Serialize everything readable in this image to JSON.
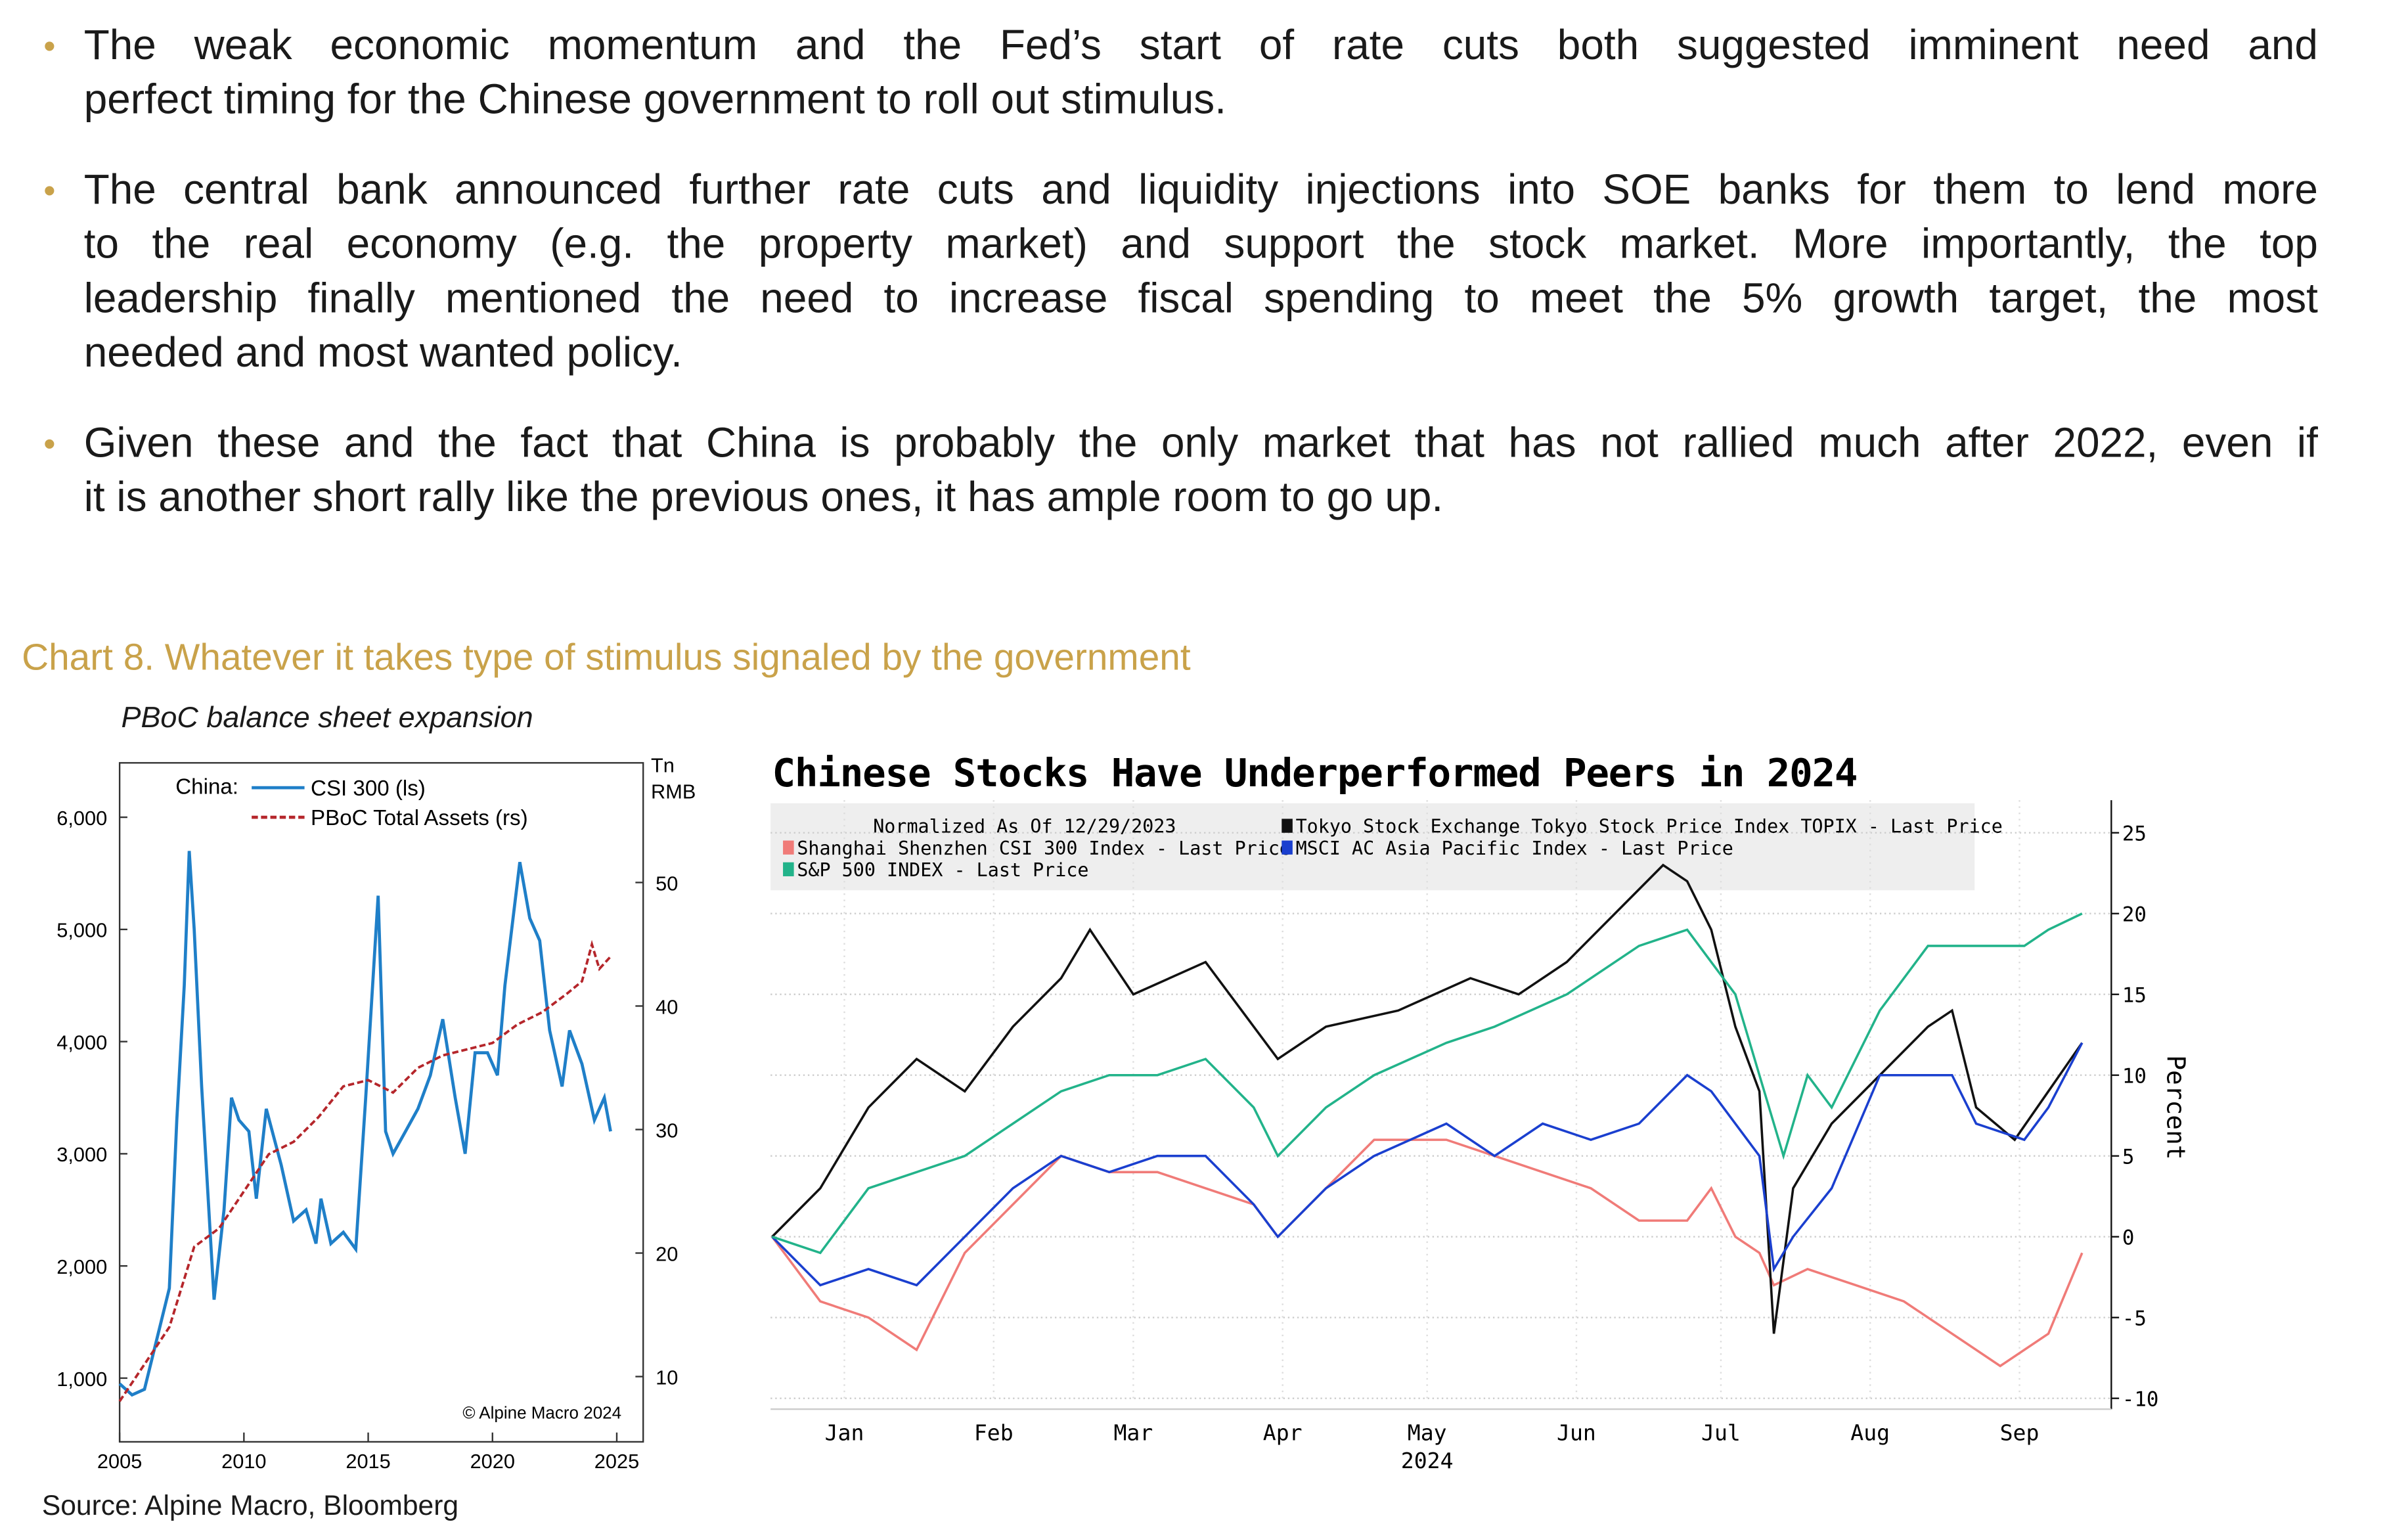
{
  "bullets": [
    {
      "lines": [
        "The weak economic momentum and the Fed’s start of rate cuts both suggested imminent need and",
        "perfect timing for the Chinese government to roll out stimulus."
      ]
    },
    {
      "lines": [
        "The central bank announced further rate cuts and liquidity injections into SOE banks for them to lend more",
        "to the real economy (e.g. the property market) and support the stock market. More importantly, the top",
        "leadership finally mentioned the need to increase fiscal spending to meet the 5% growth target, the most",
        "needed and most wanted policy."
      ]
    },
    {
      "lines": [
        "Given these and the fact that China is probably the only market that has not rallied much after 2022, even if",
        "it is another short rally like the previous ones, it has ample room to go up."
      ]
    }
  ],
  "chart_title": "Chart 8. Whatever it takes type of stimulus signaled by the government",
  "source": "Source: Alpine Macro, Bloomberg",
  "colors": {
    "gold": "#c9a24a",
    "csi_blue": "#1f7fc8",
    "pboc_red": "#b5262b",
    "cn_red": "#f07b78",
    "topix_black": "#111111",
    "msci_blue": "#1a3fcf",
    "spx_green": "#22b38a"
  },
  "chart_data": [
    {
      "type": "line",
      "title": "PBoC balance sheet expansion",
      "legend_prefix": "China:",
      "right_axis_unit": [
        "Tn",
        "RMB"
      ],
      "copyright": "© Alpine Macro 2024",
      "xlim": [
        2005,
        2025.5
      ],
      "xticks": [
        2005,
        2010,
        2015,
        2020,
        2025
      ],
      "xtick_labels": [
        "2005",
        "2010",
        "2015",
        "2020",
        "2025"
      ],
      "ylim_left": [
        500,
        6500
      ],
      "yticks_left": [
        1000,
        2000,
        3000,
        4000,
        5000,
        6000
      ],
      "ytick_labels_left": [
        "1,000",
        "2,000",
        "3,000",
        "4,000",
        "5,000",
        "6,000"
      ],
      "ylim_right": [
        5,
        56
      ],
      "yticks_right": [
        10,
        20,
        30,
        40,
        50
      ],
      "ytick_labels_right": [
        "10",
        "20",
        "30",
        "40",
        "50"
      ],
      "series": [
        {
          "name": "CSI 300 (ls)",
          "axis": "left",
          "style": "solid",
          "points": [
            [
              2005,
              950
            ],
            [
              2005.5,
              850
            ],
            [
              2006,
              900
            ],
            [
              2006.5,
              1350
            ],
            [
              2007,
              1800
            ],
            [
              2007.3,
              3300
            ],
            [
              2007.6,
              4500
            ],
            [
              2007.8,
              5700
            ],
            [
              2008,
              5000
            ],
            [
              2008.3,
              3600
            ],
            [
              2008.8,
              1700
            ],
            [
              2009.2,
              2500
            ],
            [
              2009.5,
              3500
            ],
            [
              2009.8,
              3300
            ],
            [
              2010.2,
              3200
            ],
            [
              2010.5,
              2600
            ],
            [
              2010.9,
              3400
            ],
            [
              2011.5,
              2900
            ],
            [
              2012,
              2400
            ],
            [
              2012.5,
              2500
            ],
            [
              2012.9,
              2200
            ],
            [
              2013.1,
              2600
            ],
            [
              2013.5,
              2200
            ],
            [
              2014,
              2300
            ],
            [
              2014.5,
              2150
            ],
            [
              2014.9,
              3500
            ],
            [
              2015.4,
              5300
            ],
            [
              2015.7,
              3200
            ],
            [
              2016,
              3000
            ],
            [
              2016.5,
              3200
            ],
            [
              2017,
              3400
            ],
            [
              2017.5,
              3700
            ],
            [
              2018,
              4200
            ],
            [
              2018.5,
              3500
            ],
            [
              2018.9,
              3000
            ],
            [
              2019.3,
              3900
            ],
            [
              2019.8,
              3900
            ],
            [
              2020.2,
              3700
            ],
            [
              2020.5,
              4500
            ],
            [
              2021.1,
              5600
            ],
            [
              2021.5,
              5100
            ],
            [
              2021.9,
              4900
            ],
            [
              2022.3,
              4100
            ],
            [
              2022.8,
              3600
            ],
            [
              2023.1,
              4100
            ],
            [
              2023.6,
              3800
            ],
            [
              2024.1,
              3300
            ],
            [
              2024.5,
              3500
            ],
            [
              2024.75,
              3200
            ]
          ]
        },
        {
          "name": "PBoC Total Assets (rs)",
          "axis": "right",
          "style": "dashed",
          "points": [
            [
              2005,
              8
            ],
            [
              2006,
              11
            ],
            [
              2007,
              14
            ],
            [
              2008,
              20.5
            ],
            [
              2009,
              22
            ],
            [
              2010,
              25
            ],
            [
              2011,
              28
            ],
            [
              2012,
              29
            ],
            [
              2013,
              31
            ],
            [
              2014,
              33.5
            ],
            [
              2015,
              34
            ],
            [
              2016,
              33
            ],
            [
              2017,
              35
            ],
            [
              2018,
              36
            ],
            [
              2019,
              36.5
            ],
            [
              2020,
              37
            ],
            [
              2021,
              38.5
            ],
            [
              2022,
              39.5
            ],
            [
              2023,
              41
            ],
            [
              2023.6,
              42
            ],
            [
              2024,
              45
            ],
            [
              2024.3,
              43
            ],
            [
              2024.75,
              44
            ]
          ]
        }
      ]
    },
    {
      "type": "line",
      "title": "Chinese Stocks Have Underperformed Peers in 2024",
      "legend_note": "Normalized As Of 12/29/2023",
      "ylabel": "Percent",
      "xlabel_year": "2024",
      "x_unit": "day of 2024",
      "xlim": [
        -2,
        290
      ],
      "xticks": [
        15,
        46,
        75,
        106,
        136,
        167,
        197,
        228,
        259
      ],
      "xtick_labels": [
        "Jan",
        "Feb",
        "Mar",
        "Apr",
        "May",
        "Jun",
        "Jul",
        "Aug",
        "Sep"
      ],
      "ylim": [
        -10,
        27
      ],
      "yticks": [
        -10,
        -5,
        0,
        5,
        10,
        15,
        20,
        25
      ],
      "ytick_labels": [
        "-10",
        "-5",
        "0",
        "5",
        "10",
        "15",
        "20",
        "25"
      ],
      "series": [
        {
          "name": "Shanghai Shenzhen CSI 300 Index - Last Price",
          "color_key": "cn_red",
          "points": [
            [
              0,
              0
            ],
            [
              10,
              -4
            ],
            [
              20,
              -5
            ],
            [
              30,
              -7
            ],
            [
              35,
              -4
            ],
            [
              40,
              -1
            ],
            [
              50,
              2
            ],
            [
              60,
              5
            ],
            [
              70,
              4
            ],
            [
              80,
              4
            ],
            [
              90,
              3
            ],
            [
              100,
              2
            ],
            [
              105,
              0
            ],
            [
              115,
              3
            ],
            [
              125,
              6
            ],
            [
              140,
              6
            ],
            [
              150,
              5
            ],
            [
              160,
              4
            ],
            [
              170,
              3
            ],
            [
              180,
              1
            ],
            [
              190,
              1
            ],
            [
              195,
              3
            ],
            [
              200,
              0
            ],
            [
              205,
              -1
            ],
            [
              208,
              -3
            ],
            [
              215,
              -2
            ],
            [
              225,
              -3
            ],
            [
              235,
              -4
            ],
            [
              245,
              -6
            ],
            [
              255,
              -8
            ],
            [
              265,
              -6
            ],
            [
              272,
              -1
            ]
          ]
        },
        {
          "name": "Tokyo Stock Exchange Tokyo Stock Price Index TOPIX - Last Price",
          "color_key": "topix_black",
          "points": [
            [
              0,
              0
            ],
            [
              10,
              3
            ],
            [
              20,
              8
            ],
            [
              30,
              11
            ],
            [
              40,
              9
            ],
            [
              50,
              13
            ],
            [
              60,
              16
            ],
            [
              66,
              19
            ],
            [
              75,
              15
            ],
            [
              90,
              17
            ],
            [
              100,
              13
            ],
            [
              105,
              11
            ],
            [
              115,
              13
            ],
            [
              130,
              14
            ],
            [
              145,
              16
            ],
            [
              155,
              15
            ],
            [
              165,
              17
            ],
            [
              175,
              20
            ],
            [
              185,
              23
            ],
            [
              190,
              22
            ],
            [
              195,
              19
            ],
            [
              200,
              13
            ],
            [
              205,
              9
            ],
            [
              208,
              -6
            ],
            [
              212,
              3
            ],
            [
              220,
              7
            ],
            [
              230,
              10
            ],
            [
              240,
              13
            ],
            [
              245,
              14
            ],
            [
              250,
              8
            ],
            [
              258,
              6
            ],
            [
              265,
              9
            ],
            [
              272,
              12
            ]
          ]
        },
        {
          "name": "MSCI AC Asia Pacific Index - Last Price",
          "color_key": "msci_blue",
          "points": [
            [
              0,
              0
            ],
            [
              10,
              -3
            ],
            [
              20,
              -2
            ],
            [
              30,
              -3
            ],
            [
              40,
              0
            ],
            [
              50,
              3
            ],
            [
              60,
              5
            ],
            [
              70,
              4
            ],
            [
              80,
              5
            ],
            [
              90,
              5
            ],
            [
              100,
              2
            ],
            [
              105,
              0
            ],
            [
              115,
              3
            ],
            [
              125,
              5
            ],
            [
              140,
              7
            ],
            [
              150,
              5
            ],
            [
              160,
              7
            ],
            [
              170,
              6
            ],
            [
              180,
              7
            ],
            [
              190,
              10
            ],
            [
              195,
              9
            ],
            [
              200,
              7
            ],
            [
              205,
              5
            ],
            [
              208,
              -2
            ],
            [
              212,
              0
            ],
            [
              220,
              3
            ],
            [
              230,
              10
            ],
            [
              240,
              10
            ],
            [
              245,
              10
            ],
            [
              250,
              7
            ],
            [
              260,
              6
            ],
            [
              265,
              8
            ],
            [
              272,
              12
            ]
          ]
        },
        {
          "name": "S&P 500 INDEX - Last Price",
          "color_key": "spx_green",
          "points": [
            [
              0,
              0
            ],
            [
              10,
              -1
            ],
            [
              20,
              3
            ],
            [
              30,
              4
            ],
            [
              40,
              5
            ],
            [
              50,
              7
            ],
            [
              60,
              9
            ],
            [
              70,
              10
            ],
            [
              80,
              10
            ],
            [
              90,
              11
            ],
            [
              100,
              8
            ],
            [
              105,
              5
            ],
            [
              115,
              8
            ],
            [
              125,
              10
            ],
            [
              140,
              12
            ],
            [
              150,
              13
            ],
            [
              165,
              15
            ],
            [
              180,
              18
            ],
            [
              190,
              19
            ],
            [
              195,
              17
            ],
            [
              200,
              15
            ],
            [
              205,
              10
            ],
            [
              210,
              5
            ],
            [
              215,
              10
            ],
            [
              220,
              8
            ],
            [
              230,
              14
            ],
            [
              240,
              18
            ],
            [
              250,
              18
            ],
            [
              260,
              18
            ],
            [
              265,
              19
            ],
            [
              272,
              20
            ]
          ]
        }
      ]
    }
  ]
}
